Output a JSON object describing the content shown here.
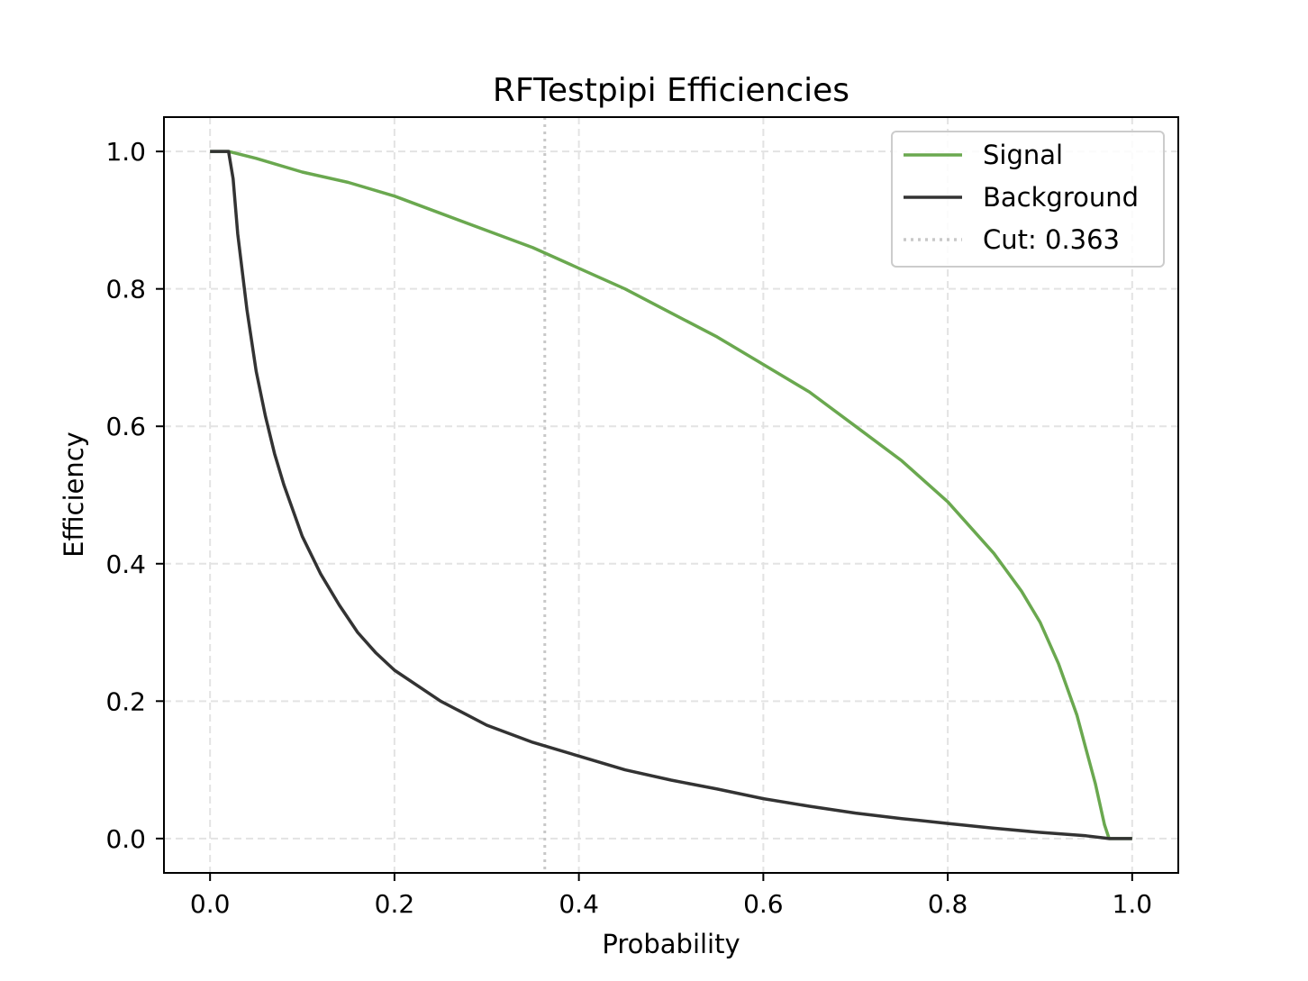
{
  "chart_data": {
    "type": "line",
    "title": "RFTestpipi Efficiencies",
    "xlabel": "Probability",
    "ylabel": "Efficiency",
    "xlim": [
      -0.05,
      1.05
    ],
    "ylim": [
      -0.05,
      1.05
    ],
    "xticks": [
      0.0,
      0.2,
      0.4,
      0.6,
      0.8,
      1.0
    ],
    "yticks": [
      0.0,
      0.2,
      0.4,
      0.6,
      0.8,
      1.0
    ],
    "x_tick_labels": [
      "0.0",
      "0.2",
      "0.4",
      "0.6",
      "0.8",
      "1.0"
    ],
    "y_tick_labels": [
      "0.0",
      "0.2",
      "0.4",
      "0.6",
      "0.8",
      "1.0"
    ],
    "grid": true,
    "legend_position": "top-right",
    "series": [
      {
        "name": "Signal",
        "color": "#6aa84f",
        "x": [
          0.0,
          0.02,
          0.05,
          0.1,
          0.15,
          0.2,
          0.25,
          0.3,
          0.35,
          0.4,
          0.45,
          0.5,
          0.55,
          0.6,
          0.65,
          0.7,
          0.75,
          0.8,
          0.85,
          0.88,
          0.9,
          0.92,
          0.94,
          0.95,
          0.96,
          0.97,
          0.975,
          0.98,
          1.0
        ],
        "y": [
          1.0,
          1.0,
          0.99,
          0.97,
          0.955,
          0.935,
          0.91,
          0.885,
          0.86,
          0.83,
          0.8,
          0.765,
          0.73,
          0.69,
          0.65,
          0.6,
          0.55,
          0.49,
          0.415,
          0.36,
          0.315,
          0.255,
          0.18,
          0.13,
          0.08,
          0.02,
          0.0,
          0.0,
          0.0
        ]
      },
      {
        "name": "Background",
        "color": "#333333",
        "x": [
          0.0,
          0.02,
          0.025,
          0.03,
          0.04,
          0.05,
          0.06,
          0.07,
          0.08,
          0.1,
          0.12,
          0.14,
          0.16,
          0.18,
          0.2,
          0.25,
          0.3,
          0.35,
          0.4,
          0.45,
          0.5,
          0.55,
          0.6,
          0.65,
          0.7,
          0.75,
          0.8,
          0.85,
          0.9,
          0.95,
          0.975,
          1.0
        ],
        "y": [
          1.0,
          1.0,
          0.96,
          0.88,
          0.77,
          0.68,
          0.615,
          0.56,
          0.515,
          0.44,
          0.385,
          0.34,
          0.3,
          0.27,
          0.245,
          0.2,
          0.165,
          0.14,
          0.12,
          0.1,
          0.085,
          0.072,
          0.058,
          0.047,
          0.037,
          0.029,
          0.022,
          0.015,
          0.009,
          0.004,
          0.0,
          0.0
        ]
      }
    ],
    "cut": {
      "name": "Cut: 0.363",
      "value": 0.363,
      "color": "#c8c8c8"
    }
  }
}
